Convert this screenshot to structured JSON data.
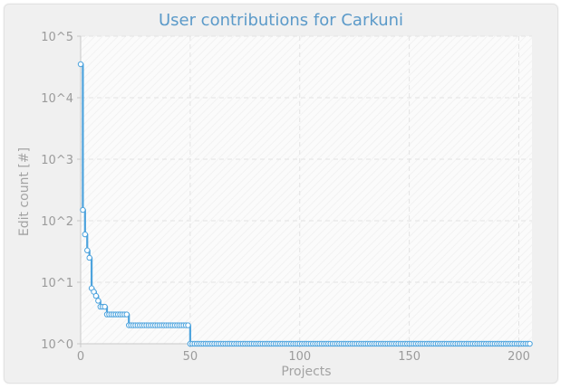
{
  "chart_data": {
    "type": "line",
    "title": "User contributions for Carkuni",
    "xlabel": "Projects",
    "ylabel": "Edit count [#]",
    "xlim": [
      0,
      206
    ],
    "ylim": [
      1,
      100000
    ],
    "yscale": "log",
    "grid": true,
    "x_ticks": [
      0,
      50,
      100,
      150,
      200
    ],
    "y_ticks": [
      {
        "value": 1,
        "label": "10^0"
      },
      {
        "value": 10,
        "label": "10^1"
      },
      {
        "value": 100,
        "label": "10^2"
      },
      {
        "value": 1000,
        "label": "10^3"
      },
      {
        "value": 10000,
        "label": "10^4"
      },
      {
        "value": 100000,
        "label": "10^5"
      }
    ],
    "colors": {
      "line": "#4da3dd",
      "marker_fill": "#ffffff",
      "grid": "#e3e3e3",
      "axis": "#c8c8c8"
    },
    "series": [
      {
        "x": [
          0,
          1,
          2,
          3,
          4,
          5,
          6,
          7,
          8,
          9,
          10,
          11,
          12,
          13,
          14,
          15,
          16,
          17,
          18,
          19,
          20,
          21,
          22,
          23,
          24,
          25,
          26,
          27,
          28,
          29,
          30,
          31,
          32,
          33,
          34,
          35,
          36,
          37,
          38,
          39,
          40,
          41,
          42,
          43,
          44,
          45,
          46,
          47,
          48,
          49,
          50,
          51,
          52,
          53,
          54,
          55,
          56,
          57,
          58,
          59,
          60,
          61,
          62,
          63,
          64,
          65,
          66,
          67,
          68,
          69,
          70,
          71,
          72,
          73,
          74,
          75,
          76,
          77,
          78,
          79,
          80,
          81,
          82,
          83,
          84,
          85,
          86,
          87,
          88,
          89,
          90,
          91,
          92,
          93,
          94,
          95,
          96,
          97,
          98,
          99,
          100,
          101,
          102,
          103,
          104,
          105,
          106,
          107,
          108,
          109,
          110,
          111,
          112,
          113,
          114,
          115,
          116,
          117,
          118,
          119,
          120,
          121,
          122,
          123,
          124,
          125,
          126,
          127,
          128,
          129,
          130,
          131,
          132,
          133,
          134,
          135,
          136,
          137,
          138,
          139,
          140,
          141,
          142,
          143,
          144,
          145,
          146,
          147,
          148,
          149,
          150,
          151,
          152,
          153,
          154,
          155,
          156,
          157,
          158,
          159,
          160,
          161,
          162,
          163,
          164,
          165,
          166,
          167,
          168,
          169,
          170,
          171,
          172,
          173,
          174,
          175,
          176,
          177,
          178,
          179,
          180,
          181,
          182,
          183,
          184,
          185,
          186,
          187,
          188,
          189,
          190,
          191,
          192,
          193,
          194,
          195,
          196,
          197,
          198,
          199,
          200,
          201,
          202,
          203,
          204,
          205
        ],
        "values": [
          35000,
          150,
          60,
          33,
          25,
          8,
          7,
          6,
          5,
          4,
          4,
          4,
          3,
          3,
          3,
          3,
          3,
          3,
          3,
          3,
          3,
          3,
          2,
          2,
          2,
          2,
          2,
          2,
          2,
          2,
          2,
          2,
          2,
          2,
          2,
          2,
          2,
          2,
          2,
          2,
          2,
          2,
          2,
          2,
          2,
          2,
          2,
          2,
          2,
          2,
          1,
          1,
          1,
          1,
          1,
          1,
          1,
          1,
          1,
          1,
          1,
          1,
          1,
          1,
          1,
          1,
          1,
          1,
          1,
          1,
          1,
          1,
          1,
          1,
          1,
          1,
          1,
          1,
          1,
          1,
          1,
          1,
          1,
          1,
          1,
          1,
          1,
          1,
          1,
          1,
          1,
          1,
          1,
          1,
          1,
          1,
          1,
          1,
          1,
          1,
          1,
          1,
          1,
          1,
          1,
          1,
          1,
          1,
          1,
          1,
          1,
          1,
          1,
          1,
          1,
          1,
          1,
          1,
          1,
          1,
          1,
          1,
          1,
          1,
          1,
          1,
          1,
          1,
          1,
          1,
          1,
          1,
          1,
          1,
          1,
          1,
          1,
          1,
          1,
          1,
          1,
          1,
          1,
          1,
          1,
          1,
          1,
          1,
          1,
          1,
          1,
          1,
          1,
          1,
          1,
          1,
          1,
          1,
          1,
          1,
          1,
          1,
          1,
          1,
          1,
          1,
          1,
          1,
          1,
          1,
          1,
          1,
          1,
          1,
          1,
          1,
          1,
          1,
          1,
          1,
          1,
          1,
          1,
          1,
          1,
          1,
          1,
          1,
          1,
          1,
          1,
          1,
          1,
          1,
          1,
          1,
          1,
          1,
          1,
          1,
          1,
          1,
          1,
          1,
          1,
          1
        ]
      }
    ]
  }
}
